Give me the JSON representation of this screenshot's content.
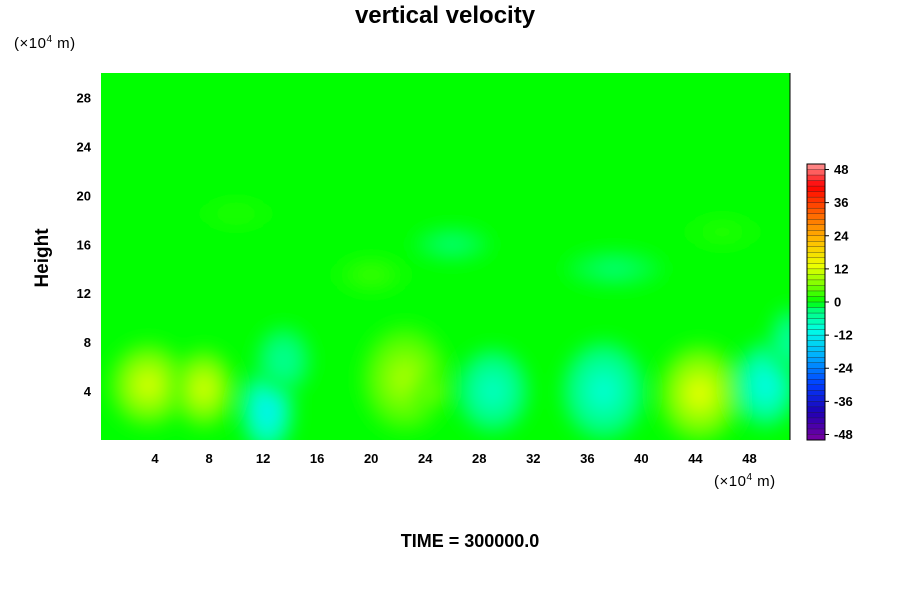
{
  "chart_data": {
    "type": "heatmap",
    "title": "vertical velocity",
    "ylabel": "Height",
    "y_unit": {
      "prefix": "(×10",
      "exp": "4",
      "suffix": " m)"
    },
    "x_unit": {
      "prefix": "(×10",
      "exp": "4",
      "suffix": " m)"
    },
    "xlim": [
      0,
      51
    ],
    "ylim": [
      0,
      30
    ],
    "x_ticks": [
      "4",
      "8",
      "12",
      "16",
      "20",
      "24",
      "28",
      "32",
      "36",
      "40",
      "44",
      "48"
    ],
    "x_tick_values": [
      4,
      8,
      12,
      16,
      20,
      24,
      28,
      32,
      36,
      40,
      44,
      48
    ],
    "y_ticks": [
      "4",
      "8",
      "12",
      "16",
      "20",
      "24",
      "28"
    ],
    "y_tick_values": [
      4,
      8,
      12,
      16,
      20,
      24,
      28
    ],
    "colorbar": {
      "range": [
        -50,
        50
      ],
      "ticks": [
        "48",
        "36",
        "24",
        "12",
        "0",
        "-12",
        "-24",
        "-36",
        "-48"
      ],
      "tick_values": [
        48,
        36,
        24,
        12,
        0,
        -12,
        -24,
        -36,
        -48
      ],
      "levels": 50
    },
    "field_features": [
      {
        "x": 3.5,
        "y": 4.5,
        "value": 12,
        "rx": 3.0,
        "ry": 3.6
      },
      {
        "x": 7.6,
        "y": 4.2,
        "value": 12,
        "rx": 2.4,
        "ry": 3.4
      },
      {
        "x": 12.3,
        "y": 2.4,
        "value": -13,
        "rx": 2.0,
        "ry": 3.6
      },
      {
        "x": 13.5,
        "y": 6.5,
        "value": -5,
        "rx": 2.2,
        "ry": 3.0
      },
      {
        "x": 22.5,
        "y": 5.0,
        "value": 9,
        "rx": 3.4,
        "ry": 4.6
      },
      {
        "x": 24.4,
        "y": 3.9,
        "value": 7,
        "rx": 1.4,
        "ry": 1.4
      },
      {
        "x": 29.0,
        "y": 4.0,
        "value": -8,
        "rx": 2.8,
        "ry": 3.6
      },
      {
        "x": 36.5,
        "y": 5.2,
        "value": -26,
        "rx": 1.6,
        "ry": 1.7
      },
      {
        "x": 37.2,
        "y": 4.0,
        "value": -9,
        "rx": 3.2,
        "ry": 4.2
      },
      {
        "x": 44.3,
        "y": 3.8,
        "value": 13,
        "rx": 3.2,
        "ry": 4.2
      },
      {
        "x": 49.2,
        "y": 4.5,
        "value": -11,
        "rx": 2.4,
        "ry": 3.6
      },
      {
        "x": 51.0,
        "y": 8.0,
        "value": -6,
        "rx": 1.6,
        "ry": 3.0
      },
      {
        "x": 10.0,
        "y": 18.5,
        "value": 2,
        "rx": 3.0,
        "ry": 1.2
      },
      {
        "x": 26.0,
        "y": 16.0,
        "value": -3,
        "rx": 3.2,
        "ry": 1.5
      },
      {
        "x": 20.0,
        "y": 13.5,
        "value": 3,
        "rx": 3.0,
        "ry": 1.6
      },
      {
        "x": 38.0,
        "y": 14.0,
        "value": -3,
        "rx": 4.0,
        "ry": 1.6
      },
      {
        "x": 46.0,
        "y": 17.0,
        "value": 2,
        "rx": 3.0,
        "ry": 1.4
      }
    ]
  },
  "time_label": "TIME = 300000.0"
}
